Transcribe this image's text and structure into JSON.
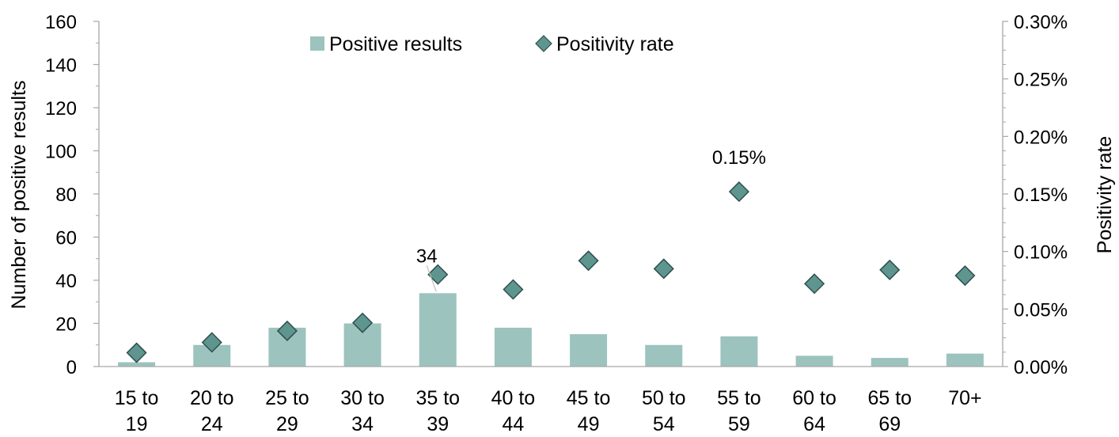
{
  "chart_data": {
    "type": "bar",
    "categories": [
      [
        "15 to",
        "19"
      ],
      [
        "20 to",
        "24"
      ],
      [
        "25 to",
        "29"
      ],
      [
        "30 to",
        "34"
      ],
      [
        "35 to",
        "39"
      ],
      [
        "40 to",
        "44"
      ],
      [
        "45 to",
        "49"
      ],
      [
        "50 to",
        "54"
      ],
      [
        "55 to",
        "59"
      ],
      [
        "60 to",
        "64"
      ],
      [
        "65 to",
        "69"
      ],
      [
        "70+",
        ""
      ]
    ],
    "series": [
      {
        "name": "Positive results",
        "kind": "bar",
        "axis": "left",
        "color": "#9cc3be",
        "values": [
          2,
          10,
          18,
          20,
          34,
          18,
          15,
          10,
          14,
          5,
          4,
          6
        ]
      },
      {
        "name": "Positivity rate",
        "kind": "marker",
        "marker": "diamond",
        "axis": "right",
        "color": "#5e958f",
        "values": [
          0.012,
          0.021,
          0.031,
          0.038,
          0.08,
          0.067,
          0.092,
          0.085,
          0.152,
          0.072,
          0.084,
          0.079
        ]
      }
    ],
    "data_labels": [
      {
        "series": 0,
        "index": 4,
        "text": "34"
      },
      {
        "series": 1,
        "index": 8,
        "text": "0.15%"
      }
    ],
    "ylabel": "Number of positive results",
    "y2label": "Positivity rate",
    "ylim": [
      0,
      160
    ],
    "yticks": [
      0,
      20,
      40,
      60,
      80,
      100,
      120,
      140,
      160
    ],
    "y2lim": [
      0,
      0.3
    ],
    "y2ticks": [
      "0.00%",
      "0.05%",
      "0.10%",
      "0.15%",
      "0.20%",
      "0.25%",
      "0.30%"
    ],
    "grid": false,
    "legend": "top-center",
    "axis_color": "#a6a6a6"
  }
}
